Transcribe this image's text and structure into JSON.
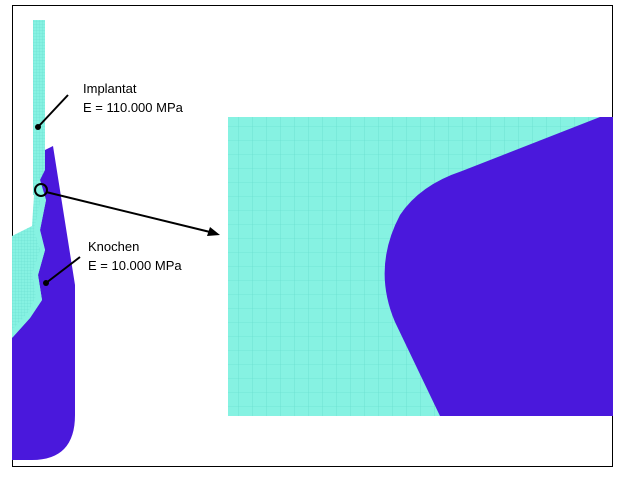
{
  "labels": {
    "implant": {
      "name": "Implantat",
      "modulus": "E = 110.000 MPa"
    },
    "bone": {
      "name": "Knochen",
      "modulus": "E = 10.000 MPa"
    }
  }
}
